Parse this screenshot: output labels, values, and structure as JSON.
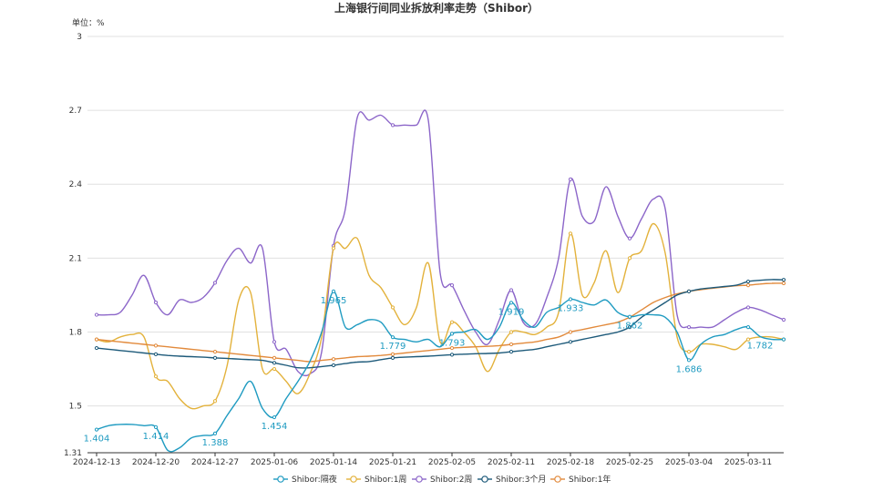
{
  "chart_data": {
    "type": "line",
    "title": "上海银行间同业拆放利率走势（Shibor）",
    "unit_label": "单位：%",
    "ylim": [
      1.31,
      3
    ],
    "y_ticks": [
      1.31,
      1.5,
      1.8,
      2.1,
      2.4,
      2.7,
      3
    ],
    "y_tick_labels": [
      "1.31",
      "1.5",
      "1.8",
      "2.1",
      "2.4",
      "2.7",
      "3"
    ],
    "grid": true,
    "legend_position": "bottom-center",
    "x_tick_labels": [
      "2024-12-13",
      "2024-12-20",
      "2024-12-27",
      "2025-01-06",
      "2025-01-14",
      "2025-01-21",
      "2025-02-05",
      "2025-02-11",
      "2025-02-18",
      "2025-02-25",
      "2025-03-04",
      "2025-03-11"
    ],
    "x_tick_index": [
      0,
      5,
      10,
      15,
      20,
      25,
      30,
      35,
      40,
      45,
      50,
      55
    ],
    "num_points": 59,
    "series": [
      {
        "name": "Shibor:隔夜",
        "color": "#1f9bc1",
        "values": [
          1.404,
          1.42,
          1.425,
          1.425,
          1.42,
          1.414,
          1.32,
          1.33,
          1.37,
          1.38,
          1.388,
          1.46,
          1.53,
          1.6,
          1.49,
          1.454,
          1.53,
          1.6,
          1.68,
          1.8,
          1.965,
          1.82,
          1.83,
          1.85,
          1.84,
          1.779,
          1.77,
          1.76,
          1.77,
          1.74,
          1.793,
          1.8,
          1.81,
          1.77,
          1.82,
          1.919,
          1.85,
          1.82,
          1.88,
          1.9,
          1.933,
          1.92,
          1.91,
          1.93,
          1.88,
          1.862,
          1.87,
          1.87,
          1.86,
          1.8,
          1.686,
          1.75,
          1.78,
          1.79,
          1.81,
          1.82,
          1.782,
          1.77,
          1.77
        ],
        "labels": [
          {
            "index": 0,
            "text": "1.404"
          },
          {
            "index": 5,
            "text": "1.414"
          },
          {
            "index": 10,
            "text": "1.388"
          },
          {
            "index": 15,
            "text": "1.454"
          },
          {
            "index": 20,
            "text": "1.965"
          },
          {
            "index": 25,
            "text": "1.779"
          },
          {
            "index": 30,
            "text": "1.793"
          },
          {
            "index": 35,
            "text": "1.919"
          },
          {
            "index": 40,
            "text": "1.933"
          },
          {
            "index": 45,
            "text": "1.862"
          },
          {
            "index": 50,
            "text": "1.686"
          },
          {
            "index": 56,
            "text": "1.782"
          }
        ]
      },
      {
        "name": "Shibor:1周",
        "color": "#e3b23c",
        "values": [
          1.77,
          1.76,
          1.78,
          1.79,
          1.78,
          1.62,
          1.6,
          1.53,
          1.49,
          1.5,
          1.52,
          1.66,
          1.93,
          1.96,
          1.65,
          1.65,
          1.6,
          1.55,
          1.63,
          1.78,
          2.14,
          2.14,
          2.18,
          2.03,
          1.98,
          1.9,
          1.83,
          1.9,
          2.08,
          1.76,
          1.84,
          1.8,
          1.74,
          1.64,
          1.73,
          1.8,
          1.8,
          1.79,
          1.82,
          1.88,
          2.2,
          1.95,
          2.0,
          2.13,
          1.96,
          2.1,
          2.13,
          2.24,
          2.12,
          1.78,
          1.72,
          1.75,
          1.75,
          1.74,
          1.73,
          1.77,
          1.78,
          1.78,
          1.77
        ],
        "labels": []
      },
      {
        "name": "Shibor:2周",
        "color": "#8c66c9",
        "values": [
          1.87,
          1.87,
          1.88,
          1.95,
          2.03,
          1.92,
          1.87,
          1.93,
          1.92,
          1.94,
          2.0,
          2.09,
          2.14,
          2.08,
          2.14,
          1.76,
          1.73,
          1.64,
          1.63,
          1.72,
          2.15,
          2.3,
          2.67,
          2.66,
          2.68,
          2.64,
          2.64,
          2.64,
          2.66,
          2.04,
          1.99,
          1.89,
          1.8,
          1.75,
          1.85,
          1.97,
          1.84,
          1.83,
          1.94,
          2.1,
          2.42,
          2.27,
          2.25,
          2.39,
          2.27,
          2.18,
          2.26,
          2.34,
          2.3,
          1.87,
          1.82,
          1.82,
          1.82,
          1.85,
          1.88,
          1.9,
          1.89,
          1.87,
          1.85
        ],
        "labels": []
      },
      {
        "name": "Shibor:3个月",
        "color": "#1d5a7a",
        "values": [
          1.735,
          1.73,
          1.725,
          1.72,
          1.715,
          1.71,
          1.705,
          1.702,
          1.7,
          1.698,
          1.695,
          1.693,
          1.69,
          1.688,
          1.685,
          1.675,
          1.665,
          1.655,
          1.655,
          1.66,
          1.665,
          1.672,
          1.678,
          1.68,
          1.688,
          1.695,
          1.698,
          1.7,
          1.702,
          1.705,
          1.708,
          1.71,
          1.712,
          1.713,
          1.715,
          1.72,
          1.725,
          1.73,
          1.74,
          1.75,
          1.76,
          1.77,
          1.78,
          1.79,
          1.8,
          1.82,
          1.86,
          1.89,
          1.92,
          1.95,
          1.965,
          1.975,
          1.98,
          1.985,
          1.99,
          2.005,
          2.01,
          2.013,
          2.012
        ],
        "labels": []
      },
      {
        "name": "Shibor:1年",
        "color": "#e28a3c",
        "values": [
          1.77,
          1.765,
          1.76,
          1.755,
          1.75,
          1.745,
          1.74,
          1.735,
          1.73,
          1.725,
          1.72,
          1.715,
          1.71,
          1.705,
          1.7,
          1.695,
          1.69,
          1.685,
          1.68,
          1.685,
          1.69,
          1.695,
          1.7,
          1.702,
          1.705,
          1.71,
          1.715,
          1.72,
          1.725,
          1.73,
          1.735,
          1.738,
          1.74,
          1.742,
          1.745,
          1.75,
          1.755,
          1.76,
          1.77,
          1.78,
          1.8,
          1.81,
          1.82,
          1.83,
          1.84,
          1.86,
          1.89,
          1.92,
          1.94,
          1.955,
          1.965,
          1.972,
          1.978,
          1.983,
          1.988,
          1.99,
          1.995,
          1.998,
          1.998
        ],
        "labels": []
      }
    ]
  }
}
